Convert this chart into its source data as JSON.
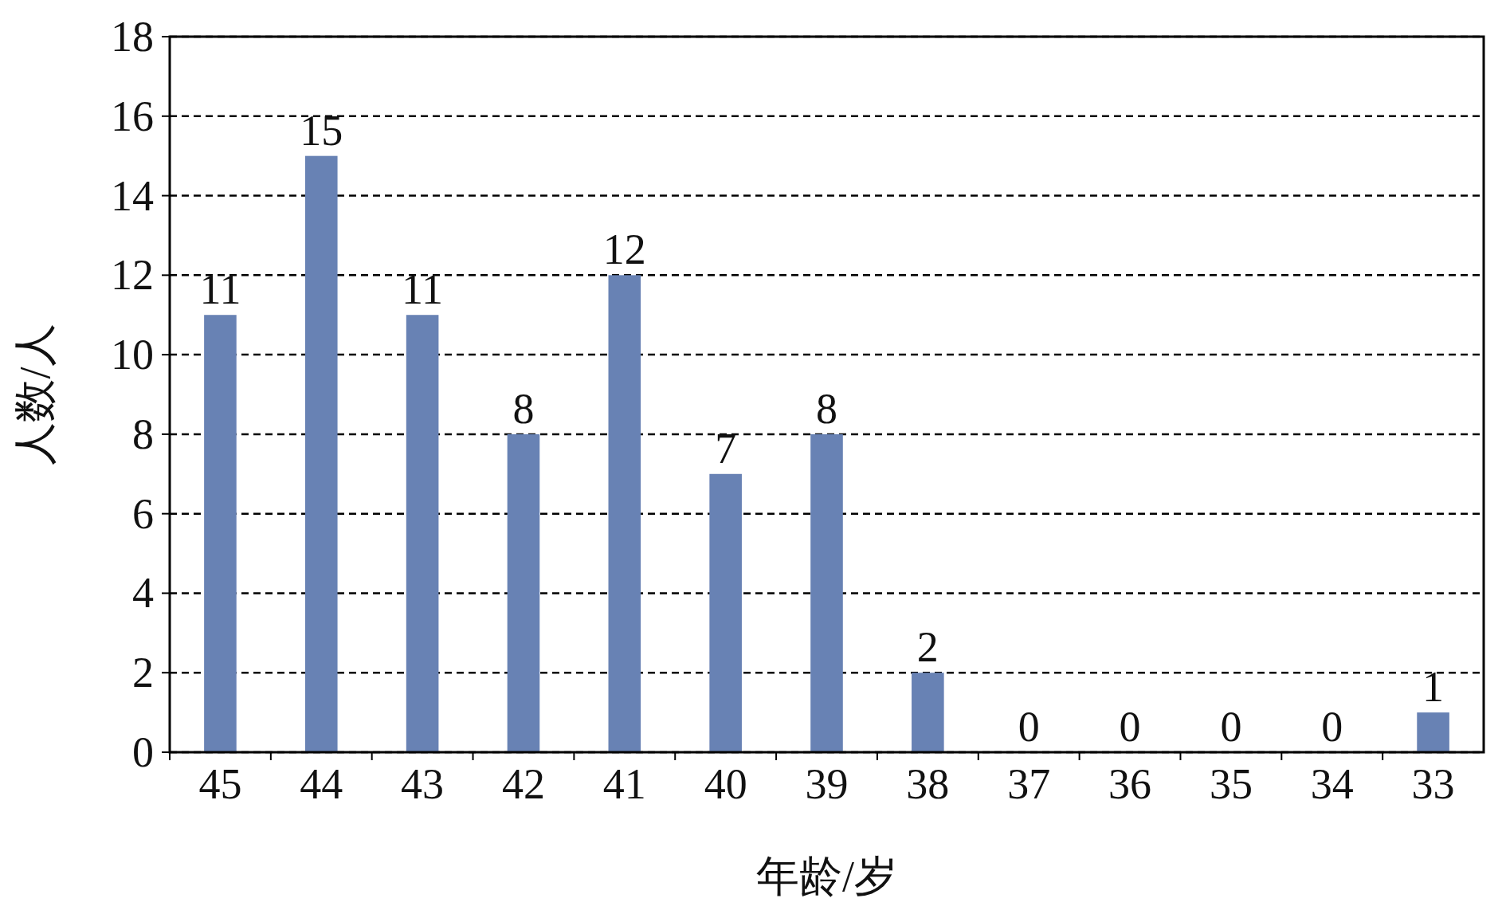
{
  "chart_data": {
    "type": "bar",
    "xlabel": "年龄/岁",
    "ylabel": "人数/人",
    "categories": [
      "45",
      "44",
      "43",
      "42",
      "41",
      "40",
      "39",
      "38",
      "37",
      "36",
      "35",
      "34",
      "33"
    ],
    "values": [
      11,
      15,
      11,
      8,
      12,
      7,
      8,
      2,
      0,
      0,
      0,
      0,
      1
    ],
    "color": "#6882b4",
    "ylim": [
      0,
      18
    ],
    "yticks": [
      0,
      2,
      4,
      6,
      8,
      10,
      12,
      14,
      16,
      18
    ],
    "grid": "y",
    "data_labels": true
  }
}
